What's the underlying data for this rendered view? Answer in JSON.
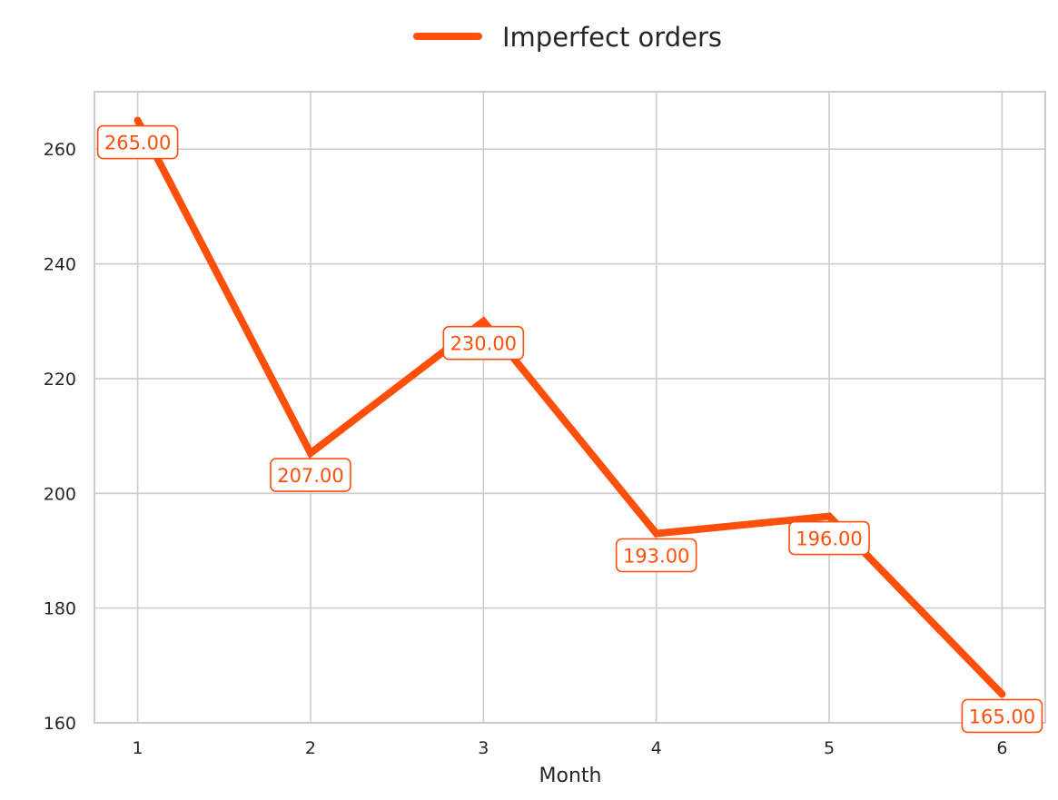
{
  "chart_data": {
    "type": "line",
    "x": [
      1,
      2,
      3,
      4,
      5,
      6
    ],
    "x_tick_labels": [
      "1",
      "2",
      "3",
      "4",
      "5",
      "6"
    ],
    "y_ticks": [
      160,
      180,
      200,
      220,
      240,
      260
    ],
    "y_tick_labels": [
      "160",
      "180",
      "200",
      "220",
      "240",
      "260"
    ],
    "series": [
      {
        "name": "Imperfect orders",
        "values": [
          265,
          207,
          230,
          193,
          196,
          165
        ],
        "data_labels": [
          "265.00",
          "207.00",
          "230.00",
          "193.00",
          "196.00",
          "165.00"
        ]
      }
    ],
    "title": "",
    "xlabel": "Month",
    "ylabel": "",
    "xlim": [
      0.75,
      6.25
    ],
    "ylim": [
      160,
      270
    ],
    "grid": true,
    "legend_position": "top-center",
    "colors": {
      "series": "#FF4F0A",
      "grid": "#CCCCCC",
      "axes": "#CCCCCC",
      "text": "#262626"
    }
  }
}
